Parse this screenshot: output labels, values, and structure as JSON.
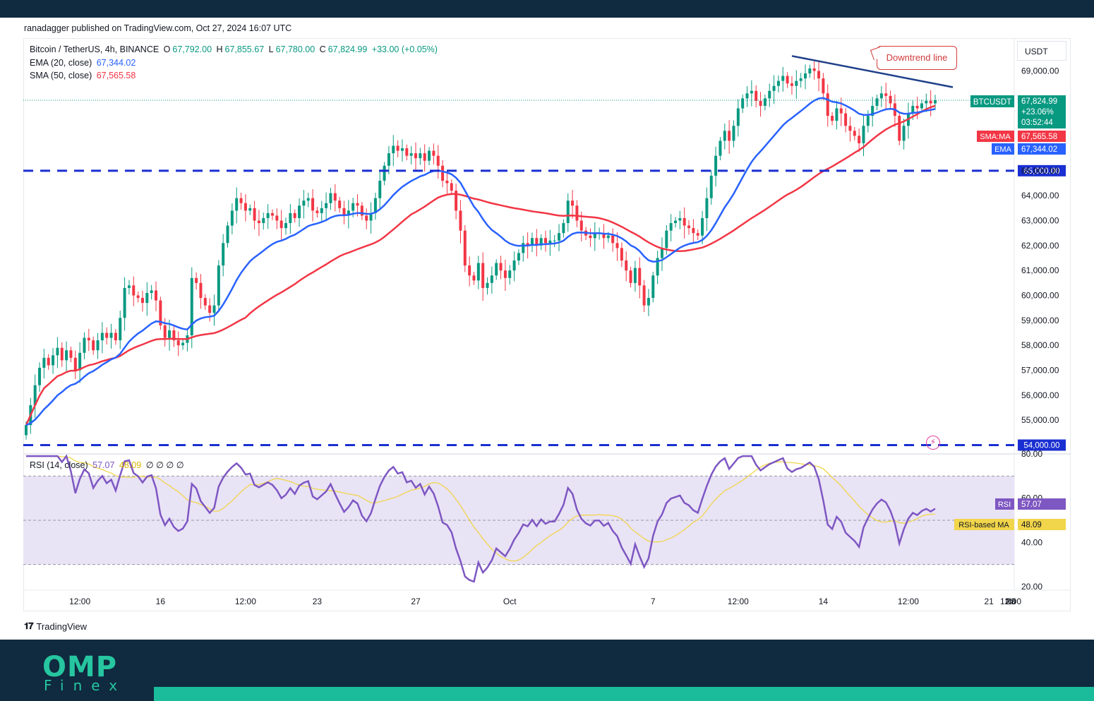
{
  "header": {
    "published": "ranadagger published on TradingView.com, Oct 27, 2024 16:07 UTC"
  },
  "legend": {
    "title": "Bitcoin / TetherUS, 4h, BINANCE",
    "o_label": "O",
    "o_value": "67,792.00",
    "h_label": "H",
    "h_value": "67,855.67",
    "l_label": "L",
    "l_value": "67,780.00",
    "c_label": "C",
    "c_value": "67,824.99",
    "change": "+33.00 (+0.05%)",
    "ema_label": "EMA (20, close)",
    "ema_value": "67,344.02",
    "sma_label": "SMA (50, close)",
    "sma_value": "67,565.58",
    "rsi_label": "RSI (14, close)",
    "rsi_value": "57.07",
    "rsi_ma_value": "48.09",
    "rsi_extras": "∅ ∅ ∅ ∅"
  },
  "axis_unit": "USDT",
  "annotation": "Downtrend line",
  "brand": "TradingView",
  "footer_logo": {
    "top": "OMP",
    "bottom": "Finex"
  },
  "colors": {
    "up": "#089981",
    "down": "#f23645",
    "ema": "#2962ff",
    "sma": "#f23645",
    "hline": "#1a2fd1",
    "trend": "#1f3f8a",
    "rsi": "#7e57c2",
    "rsi_ma": "#f1d54a",
    "rsi_band": "#e9e3f6",
    "footer": "#102a3f",
    "accent": "#1abc9c"
  },
  "chart_data": [
    {
      "type": "candlestick",
      "title": "Bitcoin / TetherUS, 4h, BINANCE",
      "timeframe": "4h",
      "ylim": [
        54000,
        69900
      ],
      "y_ticks": [
        55000,
        56000,
        57000,
        58000,
        59000,
        60000,
        61000,
        62000,
        63000,
        64000,
        65000,
        69000
      ],
      "y_tick_labels": [
        "55,000.00",
        "56,000.00",
        "57,000.00",
        "58,000.00",
        "59,000.00",
        "60,000.00",
        "61,000.00",
        "62,000.00",
        "63,000.00",
        "64,000.00",
        "65,000.00",
        "69,000.00"
      ],
      "x_tick_labels": [
        "12:00",
        "16",
        "12:00",
        "23",
        "27",
        "Oct",
        "7",
        "12:00",
        "14",
        "12:00",
        "21",
        "12:00",
        "28",
        "No"
      ],
      "x_tick_index": [
        12,
        30,
        49,
        65,
        87,
        108,
        140,
        159,
        178,
        197,
        215,
        234,
        252,
        272
      ],
      "closes": [
        54800,
        55600,
        56400,
        57100,
        57500,
        57200,
        57600,
        57900,
        57400,
        57800,
        57500,
        57000,
        57700,
        58300,
        58200,
        57800,
        58200,
        58500,
        58300,
        58500,
        58200,
        59100,
        60300,
        60400,
        60000,
        59900,
        59700,
        60100,
        60200,
        59800,
        58800,
        58300,
        58600,
        58200,
        58000,
        58100,
        58400,
        60700,
        60500,
        59900,
        59600,
        59300,
        59600,
        61200,
        62100,
        62800,
        63400,
        63900,
        63700,
        63400,
        63500,
        63000,
        62900,
        63100,
        63300,
        63200,
        63000,
        62700,
        62900,
        63300,
        63100,
        63600,
        63800,
        63900,
        63400,
        63300,
        63500,
        63700,
        64100,
        63800,
        63500,
        63200,
        63400,
        63700,
        63600,
        63200,
        63000,
        63300,
        63900,
        64600,
        65200,
        65700,
        66000,
        65800,
        65900,
        65600,
        65700,
        65500,
        65700,
        65400,
        65800,
        65600,
        65200,
        64600,
        64500,
        64200,
        63400,
        62600,
        61200,
        60800,
        60600,
        61300,
        60300,
        60500,
        60800,
        61300,
        61000,
        60700,
        61000,
        61400,
        61700,
        62100,
        62000,
        62300,
        62000,
        62300,
        62100,
        62200,
        62200,
        62500,
        62900,
        63800,
        63600,
        63000,
        62600,
        62400,
        62300,
        62500,
        62500,
        62300,
        62400,
        62100,
        61900,
        61400,
        61000,
        60500,
        61100,
        60400,
        59600,
        59900,
        60800,
        61500,
        61900,
        62600,
        62900,
        63000,
        63100,
        62800,
        62700,
        62500,
        62400,
        63100,
        63900,
        64800,
        65600,
        66200,
        66600,
        66200,
        66800,
        67500,
        67900,
        68100,
        68200,
        67800,
        67600,
        67900,
        68200,
        68400,
        68600,
        68800,
        68500,
        68400,
        68600,
        68700,
        68900,
        69100,
        69000,
        68700,
        68100,
        67200,
        67000,
        67500,
        67300,
        66800,
        66600,
        66400,
        66100,
        66800,
        67200,
        67600,
        67900,
        68100,
        68000,
        67700,
        67200,
        66200,
        66800,
        67300,
        67600,
        67500,
        67700,
        67800,
        67700,
        67825
      ],
      "opens_offset": "prev_close",
      "ema20_label": "EMA",
      "ema20_value": 67344.02,
      "sma50_label": "SMA:MA",
      "sma50_value": 67565.58,
      "horizontal_levels": [
        65000,
        54000
      ],
      "horizontal_level_labels": [
        "65,000.00",
        "54,000.00"
      ],
      "trendline": {
        "from_value": 69600,
        "to_value": 68350,
        "label": "Downtrend line"
      },
      "last_price_label": "BTCUSDT",
      "last_price": "67,824.99",
      "last_change": "+23.06%",
      "countdown": "03:52:44",
      "ema_tag": "EMA",
      "ema_tag_value": "67,344.02",
      "sma_tag": "SMA:MA",
      "sma_tag_value": "67,565.58"
    },
    {
      "type": "line",
      "title": "RSI (14, close)",
      "ylim": [
        20,
        80
      ],
      "y_ticks": [
        20,
        40,
        60,
        80
      ],
      "y_tick_labels": [
        "20.00",
        "40.00",
        "60.00",
        "80.00"
      ],
      "band": [
        30,
        70
      ],
      "series": [
        {
          "name": "RSI",
          "last": "57.07"
        },
        {
          "name": "RSI-based MA",
          "last": "48.09"
        }
      ]
    }
  ]
}
